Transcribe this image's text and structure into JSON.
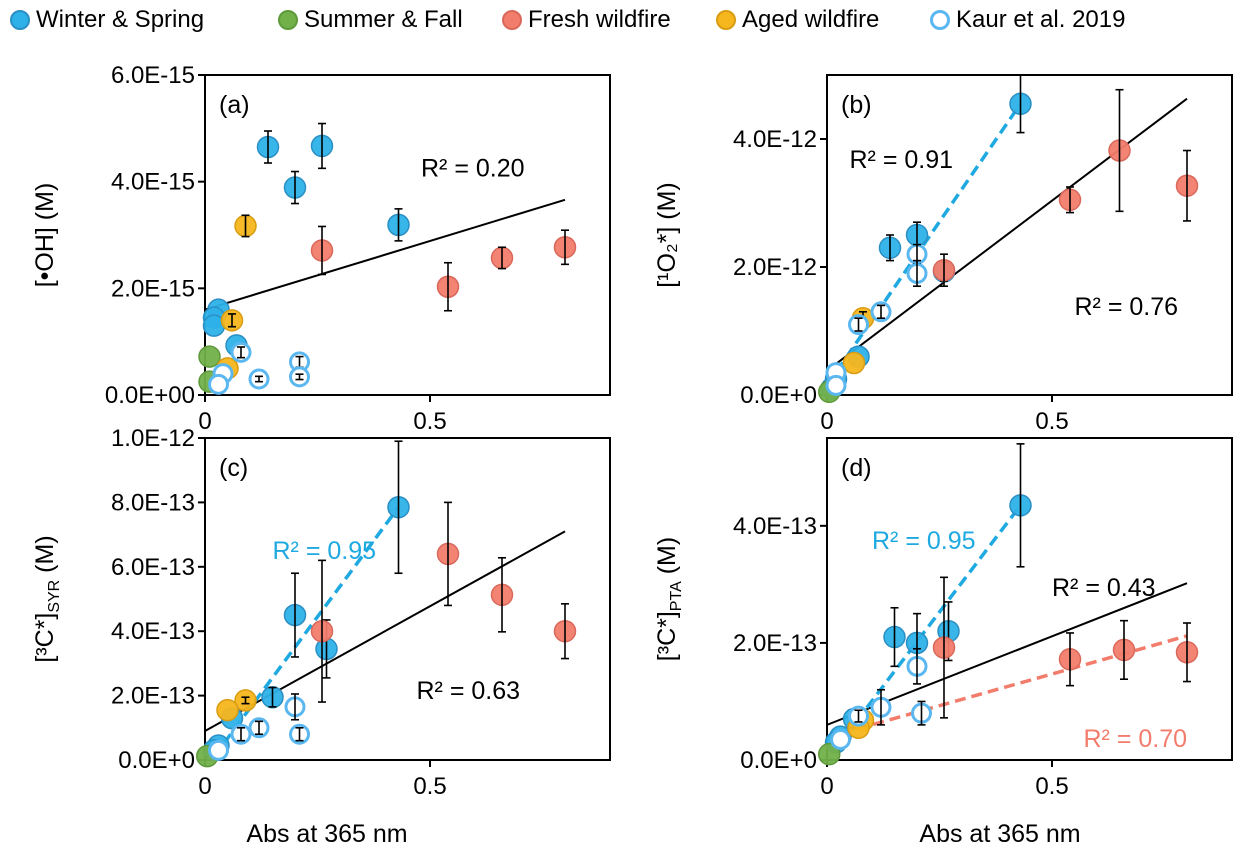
{
  "legend": {
    "items": [
      {
        "name": "Winter & Spring",
        "color": "#2db1e8",
        "fill": "solid"
      },
      {
        "name": "Summer & Fall",
        "color": "#72b04a",
        "fill": "solid"
      },
      {
        "name": "Fresh wildfire",
        "color": "#f27d6c",
        "fill": "solid"
      },
      {
        "name": "Aged wildfire",
        "color": "#f6b61d",
        "fill": "solid"
      },
      {
        "name": "Kaur et al. 2019",
        "color": "#5ab7ef",
        "fill": "hollow"
      }
    ]
  },
  "xlabel": "Abs at 365 nm",
  "chart_data": [
    {
      "type": "scatter",
      "panel": "(a)",
      "ylabel": "[•OH] (M)",
      "xlim": [
        0,
        0.9
      ],
      "ylim": [
        0,
        6e-15
      ],
      "xticks": [
        {
          "v": 0,
          "label": "0"
        },
        {
          "v": 0.5,
          "label": "0.5"
        }
      ],
      "yticks": [
        {
          "v": 0,
          "label": "0.0E+00"
        },
        {
          "v": 2e-15,
          "label": "2.0E-15"
        },
        {
          "v": 4e-15,
          "label": "4.0E-15"
        },
        {
          "v": 6e-15,
          "label": "6.0E-15"
        }
      ],
      "series": [
        {
          "name": "Winter & Spring",
          "points": [
            [
              0.14,
              4.65e-15,
              3e-16
            ],
            [
              0.26,
              4.67e-15,
              4.2e-16
            ],
            [
              0.2,
              3.89e-15,
              3e-16
            ],
            [
              0.43,
              3.19e-15,
              3e-16
            ],
            [
              0.03,
              1.6e-15,
              0
            ],
            [
              0.02,
              1.45e-15,
              0
            ],
            [
              0.02,
              1.3e-15,
              0
            ],
            [
              0.07,
              9.3e-16,
              0
            ]
          ]
        },
        {
          "name": "Summer & Fall",
          "points": [
            [
              0.01,
              7.2e-16,
              0
            ],
            [
              0.01,
              2.5e-16,
              0
            ]
          ]
        },
        {
          "name": "Fresh wildfire",
          "points": [
            [
              0.26,
              2.71e-15,
              4.5e-16
            ],
            [
              0.54,
              2.03e-15,
              4.5e-16
            ],
            [
              0.66,
              2.57e-15,
              2e-16
            ],
            [
              0.8,
              2.77e-15,
              3.2e-16
            ]
          ]
        },
        {
          "name": "Aged wildfire",
          "points": [
            [
              0.09,
              3.17e-15,
              2e-16
            ],
            [
              0.06,
              1.4e-15,
              1.2e-16
            ],
            [
              0.05,
              5e-16,
              0
            ]
          ]
        },
        {
          "name": "Kaur et al. 2019",
          "points": [
            [
              0.08,
              8e-16,
              1e-16
            ],
            [
              0.12,
              3e-16,
              5e-17
            ],
            [
              0.21,
              6.2e-16,
              1e-16
            ],
            [
              0.21,
              3.4e-16,
              5e-17
            ],
            [
              0.04,
              4e-16,
              0
            ],
            [
              0.03,
              2e-16,
              0
            ]
          ]
        }
      ],
      "fits": [
        {
          "color": "#000000",
          "dashed": false,
          "x": [
            0,
            0.8
          ],
          "y": [
            1.6e-15,
            3.66e-15
          ]
        }
      ],
      "annotations": [
        {
          "text": "R² = 0.20",
          "color": "#000000",
          "x": 0.48,
          "y": 4.1e-15
        }
      ]
    },
    {
      "type": "scatter",
      "panel": "(b)",
      "ylabel": "[¹O₂*] (M)",
      "xlim": [
        0,
        0.9
      ],
      "ylim": [
        0,
        5e-12
      ],
      "xticks": [
        {
          "v": 0,
          "label": "0"
        },
        {
          "v": 0.5,
          "label": "0.5"
        }
      ],
      "yticks": [
        {
          "v": 0,
          "label": "0.0E+0"
        },
        {
          "v": 2e-12,
          "label": "2.0E-12"
        },
        {
          "v": 4e-12,
          "label": "4.0E-12"
        }
      ],
      "series": [
        {
          "name": "Winter & Spring",
          "points": [
            [
              0.43,
              4.55e-12,
              4.5e-13
            ],
            [
              0.2,
              2.5e-12,
              2e-13
            ],
            [
              0.14,
              2.3e-12,
              2e-13
            ],
            [
              0.26,
              1.93e-12,
              1.5e-13
            ],
            [
              0.07,
              6e-13,
              0
            ],
            [
              0.02,
              2.5e-13,
              0
            ],
            [
              0.01,
              1e-13,
              0
            ]
          ]
        },
        {
          "name": "Summer & Fall",
          "points": [
            [
              0.005,
              5e-14,
              0
            ]
          ]
        },
        {
          "name": "Fresh wildfire",
          "points": [
            [
              0.65,
              3.82e-12,
              9.5e-13
            ],
            [
              0.54,
              3.05e-12,
              2e-13
            ],
            [
              0.8,
              3.27e-12,
              5.5e-13
            ],
            [
              0.26,
              1.95e-12,
              2.5e-13
            ]
          ]
        },
        {
          "name": "Aged wildfire",
          "points": [
            [
              0.08,
              1.2e-12,
              1e-13
            ],
            [
              0.06,
              5e-13,
              0
            ]
          ]
        },
        {
          "name": "Kaur et al. 2019",
          "points": [
            [
              0.2,
              2.2e-12,
              1.5e-13
            ],
            [
              0.2,
              1.9e-12,
              2e-13
            ],
            [
              0.12,
              1.3e-12,
              1e-13
            ],
            [
              0.07,
              1.1e-12,
              1e-13
            ],
            [
              0.02,
              3.5e-13,
              0
            ],
            [
              0.02,
              1.5e-13,
              0
            ]
          ]
        }
      ],
      "fits": [
        {
          "color": "#000000",
          "dashed": false,
          "x": [
            0,
            0.8
          ],
          "y": [
            3.8e-13,
            4.63e-12
          ]
        },
        {
          "color": "#1fa9e1",
          "dashed": true,
          "x": [
            0,
            0.43
          ],
          "y": [
            1.5e-13,
            4.55e-12
          ]
        }
      ],
      "annotations": [
        {
          "text": "R² = 0.91",
          "color": "#000000",
          "x": 0.05,
          "y": 3.55e-12
        },
        {
          "text": "R² = 0.76",
          "color": "#000000",
          "x": 0.55,
          "y": 1.25e-12
        }
      ]
    },
    {
      "type": "scatter",
      "panel": "(c)",
      "ylabel": "[³C*]SYR (M)",
      "ylabel_parts": {
        "pre": "[³C*]",
        "sub": "SYR",
        "post": " (M)"
      },
      "xlim": [
        0,
        0.9
      ],
      "ylim": [
        0,
        1e-12
      ],
      "xticks": [
        {
          "v": 0,
          "label": "0"
        },
        {
          "v": 0.5,
          "label": "0.5"
        }
      ],
      "yticks": [
        {
          "v": 0,
          "label": "0.0E+0"
        },
        {
          "v": 2e-13,
          "label": "2.0E-13"
        },
        {
          "v": 4e-13,
          "label": "4.0E-13"
        },
        {
          "v": 6e-13,
          "label": "6.0E-13"
        },
        {
          "v": 8e-13,
          "label": "8.0E-13"
        },
        {
          "v": 1e-12,
          "label": "1.0E-12"
        }
      ],
      "series": [
        {
          "name": "Winter & Spring",
          "points": [
            [
              0.43,
              7.85e-13,
              2.05e-13
            ],
            [
              0.2,
              4.5e-13,
              1.3e-13
            ],
            [
              0.27,
              3.45e-13,
              9e-14
            ],
            [
              0.15,
              1.95e-13,
              3e-14
            ],
            [
              0.06,
              1.3e-13,
              0
            ],
            [
              0.03,
              4.5e-14,
              0
            ],
            [
              0.02,
              3e-14,
              0
            ]
          ]
        },
        {
          "name": "Summer & Fall",
          "points": [
            [
              0.005,
              1.2e-14,
              0
            ]
          ]
        },
        {
          "name": "Fresh wildfire",
          "points": [
            [
              0.54,
              6.4e-13,
              1.6e-13
            ],
            [
              0.66,
              5.13e-13,
              1.15e-13
            ],
            [
              0.8,
              4e-13,
              8.5e-14
            ],
            [
              0.26,
              4e-13,
              2.2e-13
            ]
          ]
        },
        {
          "name": "Aged wildfire",
          "points": [
            [
              0.09,
              1.85e-13,
              1e-14
            ],
            [
              0.05,
              1.55e-13,
              0
            ]
          ]
        },
        {
          "name": "Kaur et al. 2019",
          "points": [
            [
              0.2,
              1.65e-13,
              4e-14
            ],
            [
              0.21,
              8e-14,
              2e-14
            ],
            [
              0.12,
              1e-13,
              2e-14
            ],
            [
              0.08,
              8e-14,
              2e-14
            ],
            [
              0.03,
              3e-14,
              0
            ]
          ]
        }
      ],
      "fits": [
        {
          "color": "#000000",
          "dashed": false,
          "x": [
            0,
            0.8
          ],
          "y": [
            9e-14,
            7.1e-13
          ]
        },
        {
          "color": "#1fa9e1",
          "dashed": true,
          "x": [
            0.02,
            0.43
          ],
          "y": [
            1e-14,
            7.85e-13
          ]
        }
      ],
      "annotations": [
        {
          "text": "R² = 0.95",
          "color": "#1fa9e1",
          "x": 0.15,
          "y": 6.25e-13
        },
        {
          "text": "R² = 0.63",
          "color": "#000000",
          "x": 0.47,
          "y": 1.9e-13
        }
      ]
    },
    {
      "type": "scatter",
      "panel": "(d)",
      "ylabel": "[³C*]PTA (M)",
      "ylabel_parts": {
        "pre": "[³C*]",
        "sub": "PTA",
        "post": " (M)"
      },
      "xlim": [
        0,
        0.9
      ],
      "ylim": [
        0,
        5.5e-13
      ],
      "xticks": [
        {
          "v": 0,
          "label": "0"
        },
        {
          "v": 0.5,
          "label": "0.5"
        }
      ],
      "yticks": [
        {
          "v": 0,
          "label": "0.0E+0"
        },
        {
          "v": 2e-13,
          "label": "2.0E-13"
        },
        {
          "v": 4e-13,
          "label": "4.0E-13"
        }
      ],
      "series": [
        {
          "name": "Winter & Spring",
          "points": [
            [
              0.43,
              4.35e-13,
              1.05e-13
            ],
            [
              0.15,
              2.1e-13,
              5e-14
            ],
            [
              0.2,
              2e-13,
              5e-14
            ],
            [
              0.27,
              2.2e-13,
              5e-14
            ],
            [
              0.06,
              7e-14,
              1.5e-14
            ],
            [
              0.03,
              4e-14,
              0
            ],
            [
              0.02,
              3e-14,
              0
            ]
          ]
        },
        {
          "name": "Summer & Fall",
          "points": [
            [
              0.005,
              1e-14,
              0
            ]
          ]
        },
        {
          "name": "Fresh wildfire",
          "points": [
            [
              0.26,
              1.92e-13,
              1.2e-13
            ],
            [
              0.54,
              1.72e-13,
              4.5e-14
            ],
            [
              0.66,
              1.88e-13,
              5e-14
            ],
            [
              0.8,
              1.84e-13,
              5e-14
            ]
          ]
        },
        {
          "name": "Aged wildfire",
          "points": [
            [
              0.08,
              6.8e-14,
              1e-14
            ],
            [
              0.07,
              5.5e-14,
              0
            ]
          ]
        },
        {
          "name": "Kaur et al. 2019",
          "points": [
            [
              0.2,
              1.6e-13,
              3e-14
            ],
            [
              0.21,
              8e-14,
              2e-14
            ],
            [
              0.12,
              9e-14,
              3e-14
            ],
            [
              0.07,
              7.5e-14,
              1e-14
            ],
            [
              0.03,
              3.5e-14,
              0
            ]
          ]
        }
      ],
      "fits": [
        {
          "color": "#000000",
          "dashed": false,
          "x": [
            0,
            0.8
          ],
          "y": [
            6e-14,
            3.02e-13
          ]
        },
        {
          "color": "#1fa9e1",
          "dashed": true,
          "x": [
            0.02,
            0.43
          ],
          "y": [
            2e-14,
            4.35e-13
          ]
        },
        {
          "color": "#f27d6c",
          "dashed": true,
          "x": [
            0.03,
            0.8
          ],
          "y": [
            4.5e-14,
            2.12e-13
          ]
        }
      ],
      "annotations": [
        {
          "text": "R² = 0.95",
          "color": "#1fa9e1",
          "x": 0.1,
          "y": 3.6e-13
        },
        {
          "text": "R² = 0.43",
          "color": "#000000",
          "x": 0.5,
          "y": 2.8e-13
        },
        {
          "text": "R² = 0.70",
          "color": "#f27d6c",
          "x": 0.57,
          "y": 2.2e-14
        }
      ]
    }
  ]
}
